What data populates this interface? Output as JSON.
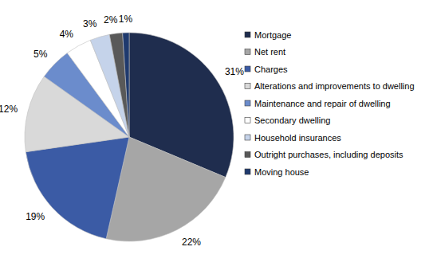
{
  "chart_data": {
    "type": "pie",
    "categories": [
      "Mortgage",
      "Net rent",
      "Charges",
      "Alterations and improvements to dwelling",
      "Maintenance and repair of dwelling",
      "Secondary dwelling",
      "Household insurances",
      "Outright purchases, including deposits",
      "Moving house"
    ],
    "values": [
      31,
      22,
      19,
      12,
      5,
      4,
      3,
      2,
      1
    ],
    "value_labels": [
      "31%",
      "22%",
      "19%",
      "12%",
      "5%",
      "4%",
      "3%",
      "2%",
      "1%"
    ],
    "colors": [
      "#1f2d4e",
      "#a6a6a6",
      "#3b5ba5",
      "#d9d9d9",
      "#6b8ccc",
      "#ffffff",
      "#c5d3ea",
      "#595959",
      "#1f3a6e"
    ],
    "data_labels": true,
    "legend": "right"
  }
}
